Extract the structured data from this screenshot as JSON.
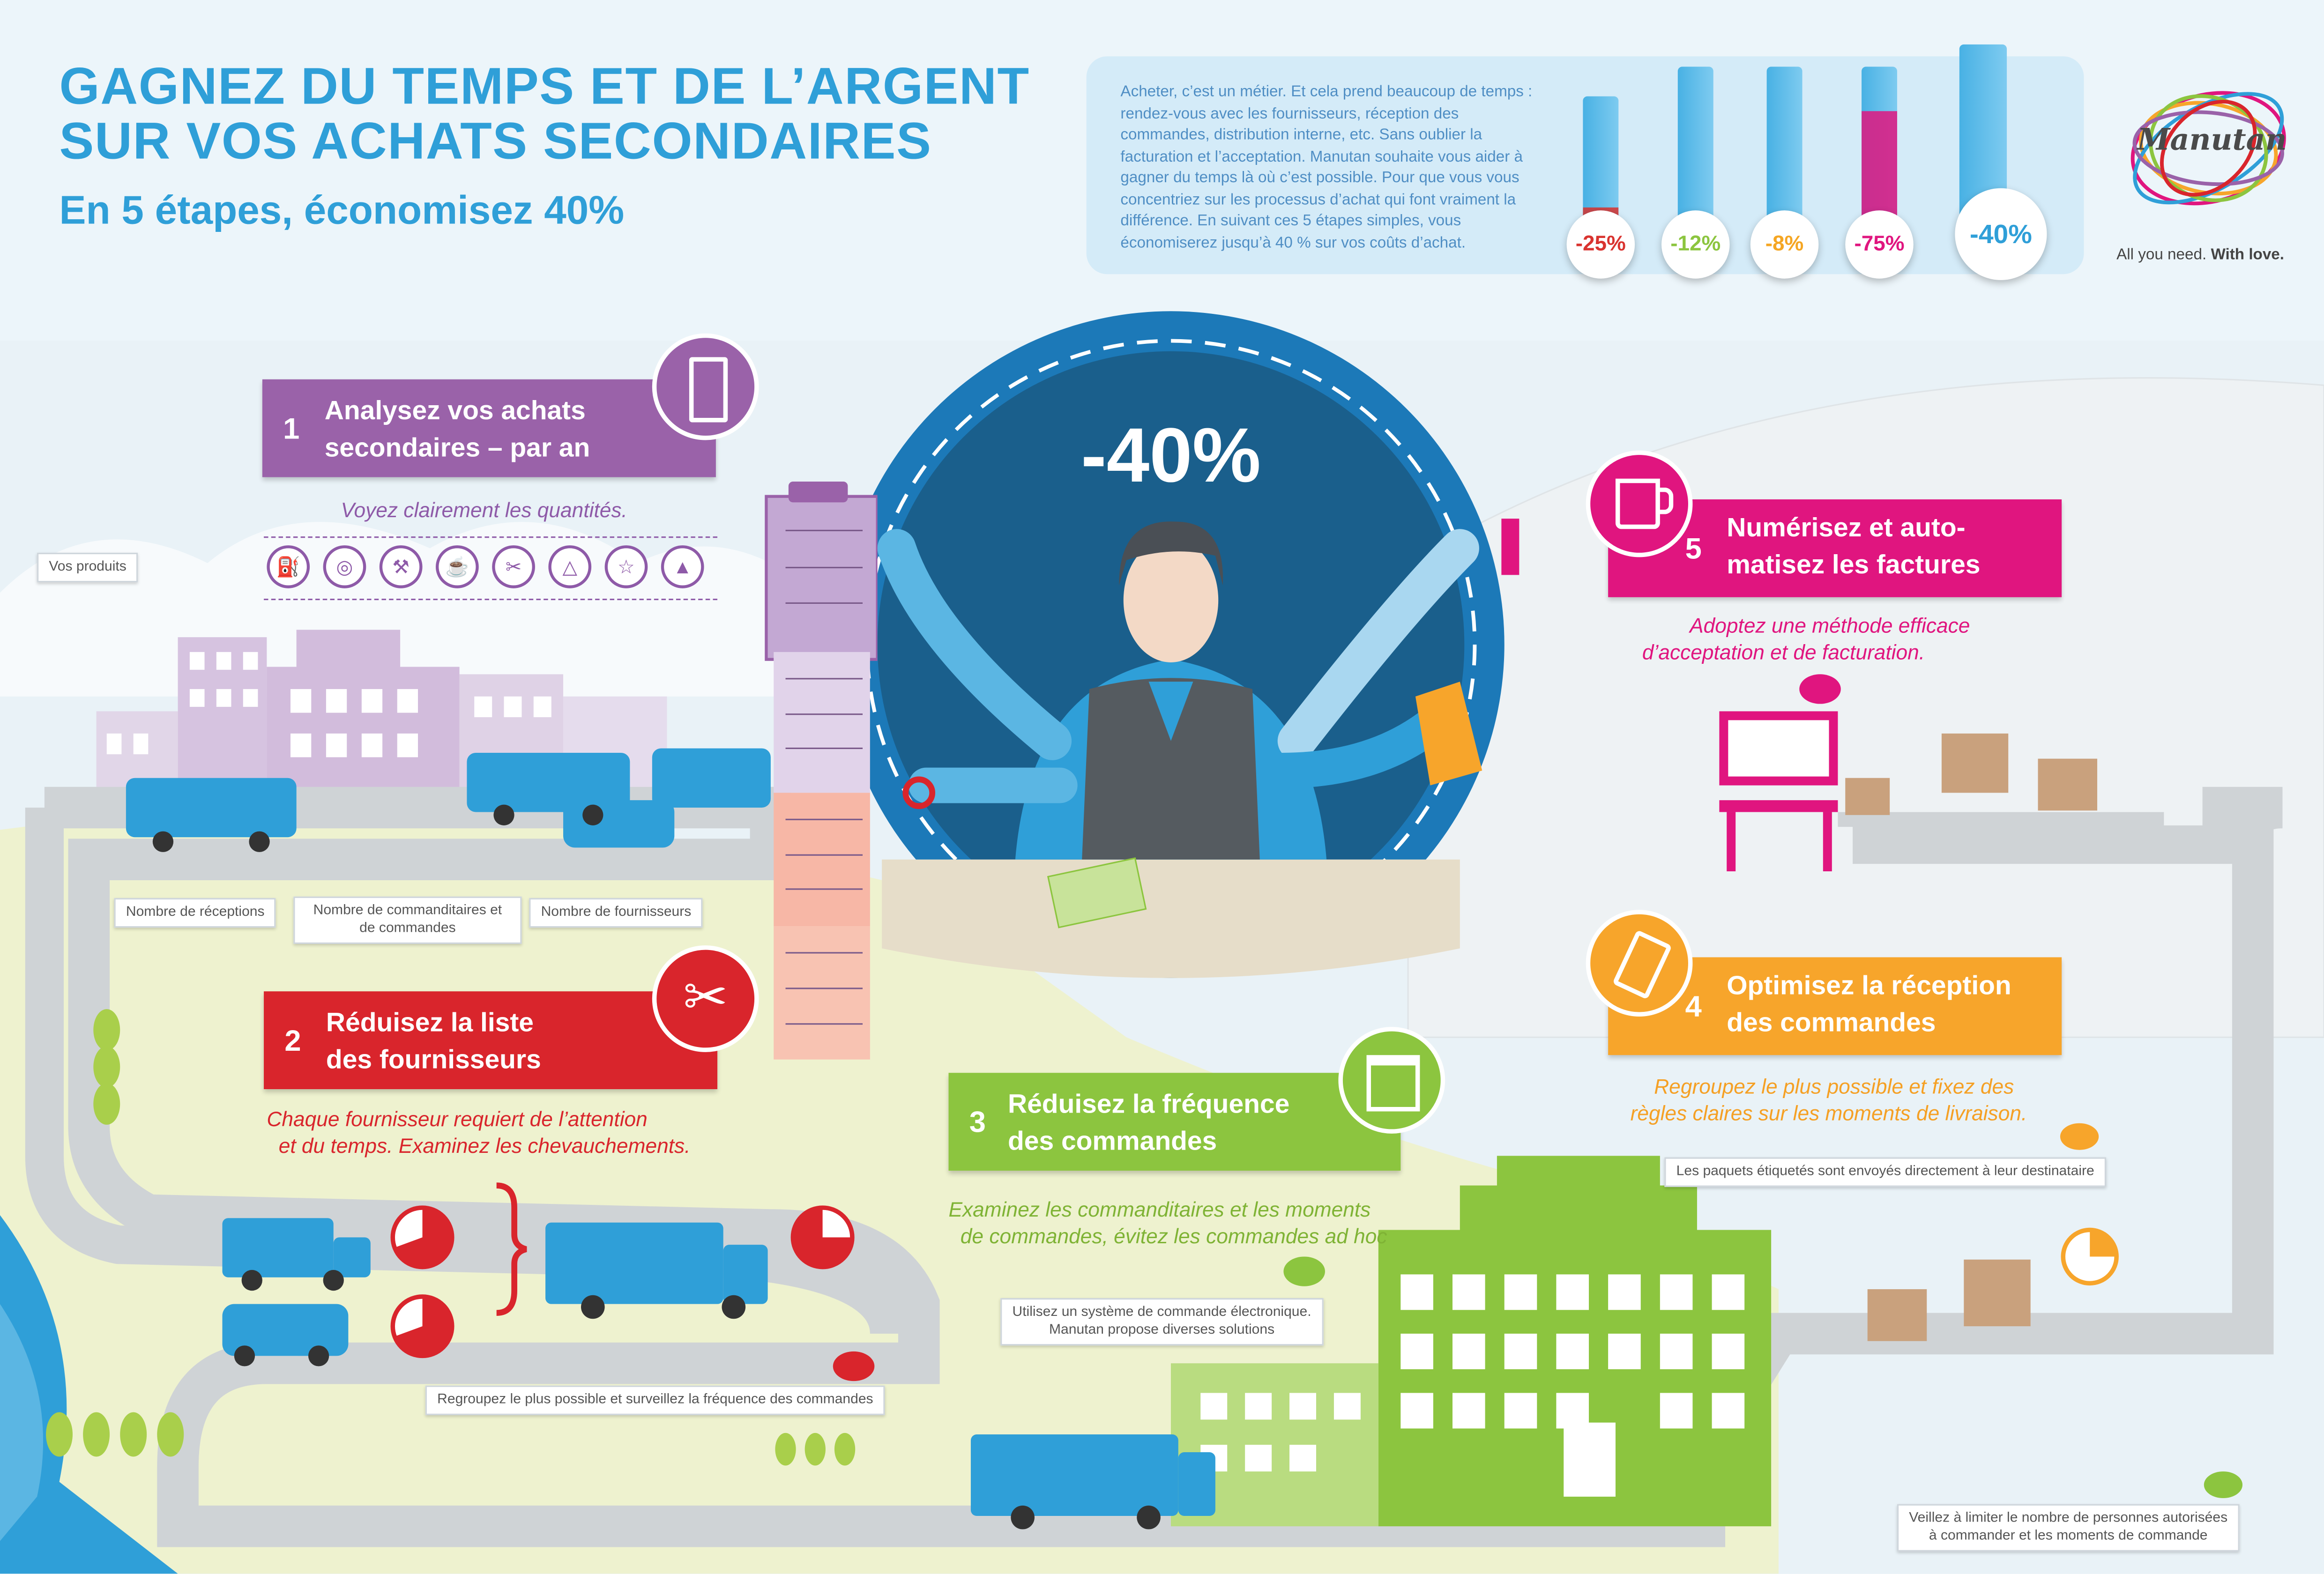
{
  "header": {
    "title_line1": "GAGNEZ DU TEMPS ET DE L’ARGENT",
    "title_line2": "SUR VOS ACHATS SECONDAIRES",
    "subtitle": "En 5 étapes, économisez 40%"
  },
  "intro": {
    "text": "Acheter, c’est un métier. Et cela prend beaucoup de temps : rendez-vous avec les fournisseurs, réception des commandes, distribution interne, etc. Sans oublier la facturation et l’acceptation. Manutan souhaite vous aider à gagner du temps là où c’est possible. Pour que vous vous concentriez sur les processus d’achat qui font vraiment la différence. En suivant ces 5 étapes simples, vous économiserez jusqu’à 40 % sur vos coûts d’achat."
  },
  "savings_bars": [
    {
      "label": "-25%",
      "fill": 0.25,
      "color": "#d9332f",
      "icon": "scissors-icon"
    },
    {
      "label": "-12%",
      "fill": 0.12,
      "color": "#8cc53f",
      "icon": "calendar-icon"
    },
    {
      "label": "-8%",
      "fill": 0.08,
      "color": "#f5a623",
      "icon": "tag-icon"
    },
    {
      "label": "-75%",
      "fill": 0.75,
      "color": "#e0157f",
      "icon": "mug-icon"
    },
    {
      "label": "-40%",
      "fill": 0.4,
      "color": "#2f9fd8",
      "icon": ""
    }
  ],
  "brand": {
    "logo": "Manutan",
    "tagline_plain": "All you need.",
    "tagline_bold": "With love."
  },
  "center": {
    "big_percent": "-40%"
  },
  "steps": {
    "s1": {
      "num": "1",
      "line1": "Analysez vos achats",
      "line2": "secondaires – par an",
      "tip": "Voyez clairement les quantités.",
      "color": "#9a62a9",
      "icon": "clipboard-icon"
    },
    "s2": {
      "num": "2",
      "line1": "Réduisez la liste",
      "line2": "des fournisseurs",
      "tip1": "Chaque fournisseur requiert de l’attention",
      "tip2": "et du temps. Examinez les chevauchements.",
      "color": "#d9252c",
      "icon": "scissors-icon"
    },
    "s3": {
      "num": "3",
      "line1": "Réduisez la fréquence",
      "line2": "des commandes",
      "tip1": "Examinez les commanditaires et les moments",
      "tip2": "de commandes, évitez les commandes ad hoc",
      "color": "#8cc53f",
      "icon": "calendar-icon"
    },
    "s4": {
      "num": "4",
      "line1": "Optimisez la réception",
      "line2": "des commandes",
      "tip1": "Regroupez le plus possible et fixez des",
      "tip2": "règles claires sur les moments de livraison.",
      "color": "#f7a52b",
      "icon": "tag-icon"
    },
    "s5": {
      "num": "5",
      "line1": "Numérisez et auto-",
      "line2": "matisez les factures",
      "tip1": "Adoptez une méthode efficace",
      "tip2": "d’acceptation et de facturation.",
      "color": "#e0157f",
      "icon": "mug-icon"
    }
  },
  "labels": {
    "products": "Vos produits",
    "receptions": "Nombre de réceptions",
    "orderers_1": "Nombre de commanditaires et",
    "orderers_2": "de commandes",
    "suppliers": "Nombre de fournisseurs",
    "group": "Regroupez le plus possible et surveillez la fréquence des commandes",
    "electronic_1": "Utilisez un système de commande électronique.",
    "electronic_2": "Manutan propose diverses solutions",
    "labelled": "Les paquets étiquetés sont envoyés directement à leur destinataire",
    "limit_1": "Veillez à limiter le nombre de personnes autorisées",
    "limit_2": "à commander et les moments de commande"
  },
  "product_icons": [
    "oil-can-icon",
    "tape-icon",
    "hammer-icon",
    "jug-icon",
    "paperclip-icon",
    "hanger-icon",
    "lamp-icon",
    "cone-icon"
  ]
}
